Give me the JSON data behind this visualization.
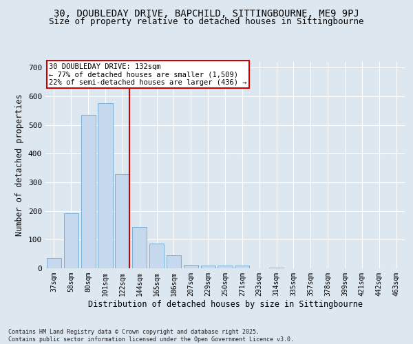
{
  "title1": "30, DOUBLEDAY DRIVE, BAPCHILD, SITTINGBOURNE, ME9 9PJ",
  "title2": "Size of property relative to detached houses in Sittingbourne",
  "xlabel": "Distribution of detached houses by size in Sittingbourne",
  "ylabel": "Number of detached properties",
  "categories": [
    "37sqm",
    "58sqm",
    "80sqm",
    "101sqm",
    "122sqm",
    "144sqm",
    "165sqm",
    "186sqm",
    "207sqm",
    "229sqm",
    "250sqm",
    "271sqm",
    "293sqm",
    "314sqm",
    "335sqm",
    "357sqm",
    "378sqm",
    "399sqm",
    "421sqm",
    "442sqm",
    "463sqm"
  ],
  "values": [
    35,
    193,
    535,
    575,
    330,
    145,
    87,
    45,
    13,
    10,
    9,
    10,
    0,
    3,
    0,
    0,
    0,
    0,
    0,
    0,
    0
  ],
  "bar_color": "#c5d8ee",
  "bar_edge_color": "#7aafd4",
  "vline_color": "#cc0000",
  "annotation_line1": "30 DOUBLEDAY DRIVE: 132sqm",
  "annotation_line2": "← 77% of detached houses are smaller (1,509)",
  "annotation_line3": "22% of semi-detached houses are larger (436) →",
  "annotation_box_color": "#ffffff",
  "annotation_box_edge": "#cc0000",
  "ylim": [
    0,
    720
  ],
  "yticks": [
    0,
    100,
    200,
    300,
    400,
    500,
    600,
    700
  ],
  "background_color": "#dde7f0",
  "footer1": "Contains HM Land Registry data © Crown copyright and database right 2025.",
  "footer2": "Contains public sector information licensed under the Open Government Licence v3.0.",
  "title1_fontsize": 10,
  "title2_fontsize": 9,
  "tick_fontsize": 7,
  "label_fontsize": 8.5,
  "annotation_fontsize": 7.5,
  "footer_fontsize": 6
}
